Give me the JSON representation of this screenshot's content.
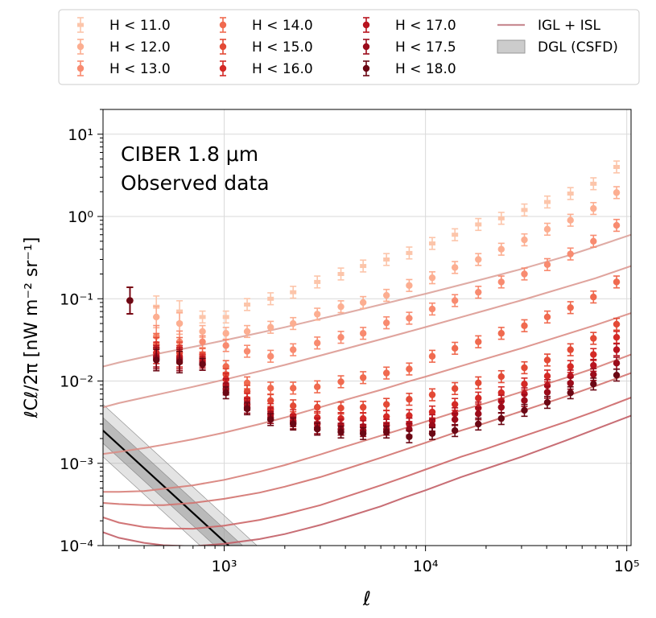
{
  "chart_data": {
    "type": "scatter",
    "panel_label": [
      "CIBER 1.8 μm",
      "Observed data"
    ],
    "xlabel": "ℓ",
    "ylabel": "ℓCℓ/2π [nW m⁻² sr⁻¹]",
    "xscale": "log",
    "yscale": "log",
    "xlim": [
      250,
      105000
    ],
    "ylim": [
      0.0001,
      20
    ],
    "x_ticks": [
      {
        "value": 1000,
        "label": "10³"
      },
      {
        "value": 10000,
        "label": "10⁴"
      },
      {
        "value": 100000,
        "label": "10⁵"
      }
    ],
    "y_ticks": [
      {
        "value": 0.0001,
        "label": "10⁻⁴"
      },
      {
        "value": 0.001,
        "label": "10⁻³"
      },
      {
        "value": 0.01,
        "label": "10⁻²"
      },
      {
        "value": 0.1,
        "label": "10⁻¹"
      },
      {
        "value": 1,
        "label": "10⁰"
      },
      {
        "value": 10,
        "label": "10¹"
      }
    ],
    "grid": true,
    "legend_position": "top (above plot)",
    "ell": [
      340,
      460,
      600,
      780,
      1020,
      1300,
      1700,
      2200,
      2900,
      3800,
      4900,
      6400,
      8300,
      10800,
      14000,
      18300,
      23800,
      31000,
      40300,
      52500,
      68300,
      89000
    ],
    "series": [
      {
        "name": "H < 11.0",
        "color": "#fcc5aa",
        "marker": "bar",
        "values": [
          0.095,
          0.08,
          0.07,
          0.06,
          0.06,
          0.085,
          0.1,
          0.12,
          0.16,
          0.2,
          0.25,
          0.3,
          0.36,
          0.47,
          0.6,
          0.8,
          0.95,
          1.2,
          1.5,
          1.9,
          2.5,
          4.0
        ]
      },
      {
        "name": "H < 12.0",
        "color": "#fcae91",
        "marker": "circle",
        "values": [
          0.095,
          0.06,
          0.05,
          0.04,
          0.038,
          0.04,
          0.045,
          0.05,
          0.065,
          0.08,
          0.09,
          0.11,
          0.145,
          0.18,
          0.24,
          0.3,
          0.4,
          0.52,
          0.7,
          0.9,
          1.25,
          1.95
        ]
      },
      {
        "name": "H < 13.0",
        "color": "#f88b70",
        "marker": "circle",
        "values": [
          0.095,
          0.035,
          0.03,
          0.03,
          0.027,
          0.023,
          0.02,
          0.024,
          0.029,
          0.034,
          0.038,
          0.051,
          0.058,
          0.075,
          0.095,
          0.12,
          0.16,
          0.2,
          0.26,
          0.35,
          0.5,
          0.78
        ]
      },
      {
        "name": "H < 14.0",
        "color": "#f06a4f",
        "marker": "circle",
        "values": [
          0.095,
          0.028,
          0.025,
          0.021,
          0.015,
          0.0095,
          0.0082,
          0.0082,
          0.0085,
          0.0098,
          0.011,
          0.0125,
          0.014,
          0.02,
          0.025,
          0.03,
          0.038,
          0.047,
          0.06,
          0.078,
          0.105,
          0.16
        ]
      },
      {
        "name": "H < 15.0",
        "color": "#e34a36",
        "marker": "circle",
        "values": [
          0.095,
          0.025,
          0.022,
          0.019,
          0.012,
          0.0075,
          0.0058,
          0.005,
          0.0048,
          0.0047,
          0.0048,
          0.0052,
          0.006,
          0.0068,
          0.0081,
          0.0095,
          0.0113,
          0.0145,
          0.018,
          0.024,
          0.033,
          0.049
        ]
      },
      {
        "name": "H < 16.0",
        "color": "#d42a26",
        "marker": "circle",
        "values": [
          0.095,
          0.022,
          0.02,
          0.018,
          0.0105,
          0.006,
          0.0045,
          0.0038,
          0.0036,
          0.0035,
          0.0035,
          0.0037,
          0.0038,
          0.0042,
          0.0052,
          0.0062,
          0.0072,
          0.0092,
          0.0115,
          0.015,
          0.021,
          0.034
        ]
      },
      {
        "name": "H < 17.0",
        "color": "#b8141f",
        "marker": "circle",
        "values": [
          0.095,
          0.02,
          0.019,
          0.017,
          0.009,
          0.0052,
          0.004,
          0.0033,
          0.003,
          0.0029,
          0.0028,
          0.0029,
          0.003,
          0.0033,
          0.004,
          0.0047,
          0.0057,
          0.007,
          0.0088,
          0.0115,
          0.0155,
          0.024
        ]
      },
      {
        "name": "H < 17.5",
        "color": "#9b0c1b",
        "marker": "circle",
        "values": [
          0.095,
          0.019,
          0.018,
          0.016,
          0.008,
          0.0048,
          0.0036,
          0.0031,
          0.0027,
          0.0026,
          0.0025,
          0.0026,
          0.0026,
          0.0029,
          0.0034,
          0.004,
          0.0048,
          0.0058,
          0.0073,
          0.0094,
          0.012,
          0.0165
        ]
      },
      {
        "name": "H < 18.0",
        "color": "#6b0714",
        "marker": "circle",
        "values": [
          0.095,
          0.018,
          0.017,
          0.016,
          0.0072,
          0.0046,
          0.0034,
          0.003,
          0.0026,
          0.0024,
          0.0023,
          0.0024,
          0.0021,
          0.0023,
          0.0025,
          0.003,
          0.0035,
          0.0044,
          0.0055,
          0.0072,
          0.0092,
          0.0118
        ]
      }
    ],
    "model_curves": {
      "name": "IGL + ISL",
      "color": "#c98d93",
      "ell": [
        250,
        300,
        400,
        500,
        700,
        1000,
        1500,
        2000,
        3000,
        4000,
        6000,
        8000,
        10000,
        15000,
        20000,
        30000,
        50000,
        70000,
        105000
      ],
      "curves": [
        [
          0.015,
          0.0168,
          0.0196,
          0.0222,
          0.026,
          0.0312,
          0.0386,
          0.045,
          0.057,
          0.067,
          0.085,
          0.101,
          0.115,
          0.148,
          0.177,
          0.23,
          0.33,
          0.43,
          0.6
        ],
        [
          0.0048,
          0.0054,
          0.0063,
          0.0071,
          0.0085,
          0.0104,
          0.0132,
          0.0157,
          0.0204,
          0.0246,
          0.0322,
          0.039,
          0.0452,
          0.0596,
          0.0725,
          0.096,
          0.139,
          0.178,
          0.25
        ],
        [
          0.0013,
          0.00138,
          0.00153,
          0.00168,
          0.00196,
          0.00236,
          0.003,
          0.0036,
          0.0048,
          0.0059,
          0.0078,
          0.0097,
          0.0113,
          0.0152,
          0.0187,
          0.025,
          0.037,
          0.048,
          0.067
        ],
        [
          0.00045,
          0.00045,
          0.00046,
          0.00049,
          0.00054,
          0.00063,
          0.00079,
          0.00095,
          0.00128,
          0.0016,
          0.00217,
          0.0027,
          0.0032,
          0.0044,
          0.0054,
          0.0074,
          0.011,
          0.0145,
          0.021
        ],
        [
          0.00033,
          0.00032,
          0.00031,
          0.00031,
          0.00033,
          0.00037,
          0.00044,
          0.00052,
          0.00068,
          0.00085,
          0.00117,
          0.00148,
          0.00178,
          0.0025,
          0.0031,
          0.0043,
          0.0065,
          0.0087,
          0.0125
        ],
        [
          0.00022,
          0.00019,
          0.000168,
          0.000162,
          0.00016,
          0.000175,
          0.000205,
          0.00024,
          0.00031,
          0.00039,
          0.00054,
          0.00069,
          0.00084,
          0.0012,
          0.0015,
          0.0021,
          0.0032,
          0.0043,
          0.0063
        ],
        [
          0.000145,
          0.000124,
          0.000108,
          0.000101,
          9.8e-05,
          0.000105,
          0.00012,
          0.000138,
          0.000178,
          0.00022,
          0.0003,
          0.00039,
          0.00047,
          0.00068,
          0.00086,
          0.0012,
          0.0019,
          0.0026,
          0.0038
        ]
      ]
    },
    "dgl": {
      "name": "DGL (CSFD)",
      "line_color": "#000000",
      "fill_color": "#999999",
      "ell": [
        250,
        1800
      ],
      "center": [
        0.0025,
        3e-05
      ],
      "inner_band": [
        [
          0.00175,
          0.0036
        ],
        [
          2.1e-05,
          4.3e-05
        ]
      ],
      "outer_band": [
        [
          0.0012,
          0.0052
        ],
        [
          1.45e-05,
          6.2e-05
        ]
      ]
    },
    "legend": [
      "H < 11.0",
      "H < 12.0",
      "H < 13.0",
      "H < 14.0",
      "H < 15.0",
      "H < 16.0",
      "H < 17.0",
      "H < 17.5",
      "H < 18.0",
      "IGL + ISL",
      "DGL (CSFD)"
    ]
  }
}
